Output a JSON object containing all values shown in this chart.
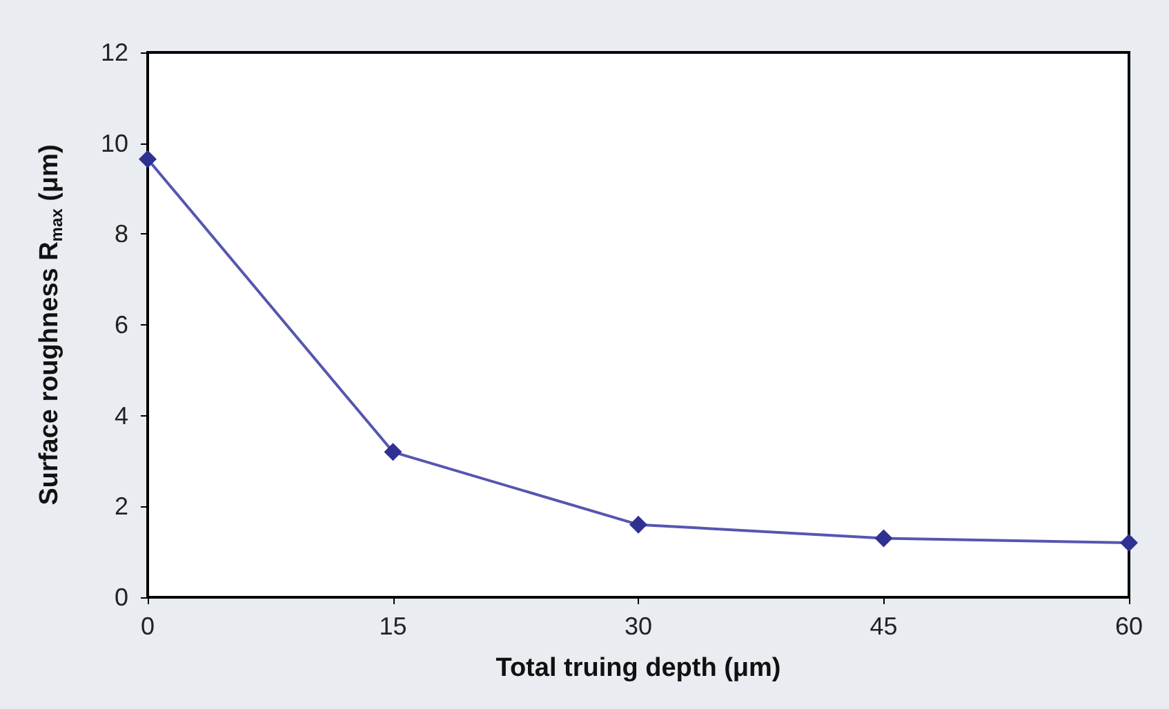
{
  "chart_data": {
    "type": "line",
    "xlabel": "Total truing depth (μm)",
    "ylabel": "Surface roughness R$_{max}$ (μm)",
    "x": [
      0,
      15,
      30,
      45,
      60
    ],
    "series": [
      {
        "color": "#5656b0",
        "values": [
          9.65,
          3.2,
          1.6,
          1.3,
          1.2
        ]
      }
    ],
    "xlim": [
      0,
      60
    ],
    "xticks": [
      0,
      15,
      30,
      45,
      60
    ],
    "ylim": [
      0,
      12
    ],
    "yticks": [
      0,
      2,
      4,
      6,
      8,
      10,
      12
    ],
    "grid": false,
    "marker": "diamond",
    "line_style": "solid"
  }
}
